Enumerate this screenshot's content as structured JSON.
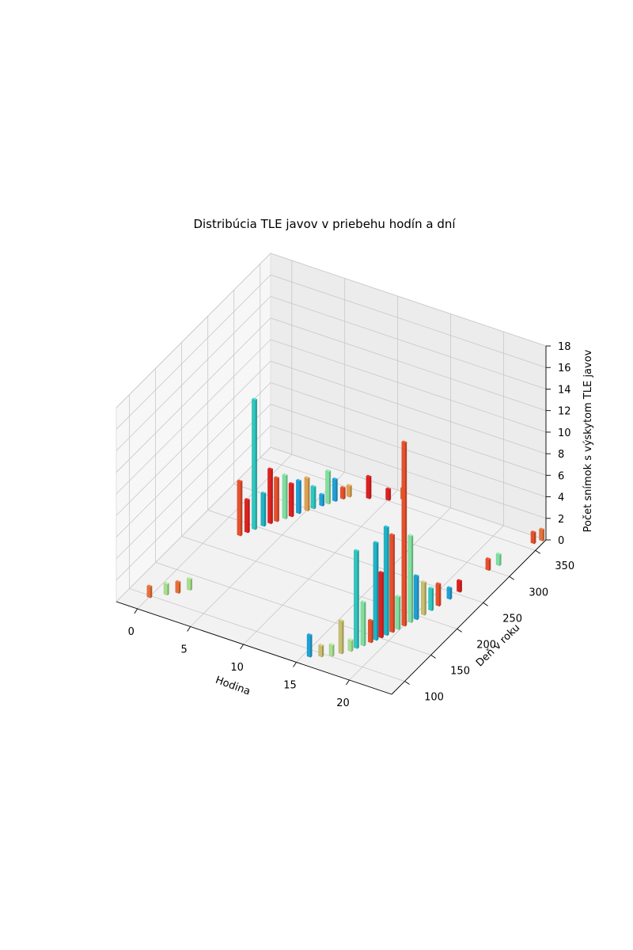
{
  "chart_data": {
    "type": "bar3d",
    "title": "Distribúcia TLE javov v priebehu hodín a dní",
    "xlabel": "Hodina",
    "ylabel": "Deň v roku",
    "zlabel": "Počet snímok s výskytom TLE javov",
    "xlim": [
      -2,
      24
    ],
    "ylim": [
      75,
      370
    ],
    "zlim": [
      0,
      18
    ],
    "xticks": [
      0,
      5,
      10,
      15,
      20
    ],
    "yticks": [
      100,
      150,
      200,
      250,
      300,
      350
    ],
    "zticks": [
      0,
      2,
      4,
      6,
      8,
      10,
      12,
      14,
      16,
      18
    ],
    "grid": true,
    "bars": [
      {
        "x": 0,
        "y": 98,
        "z": 1,
        "color": "#e8703a"
      },
      {
        "x": 1,
        "y": 110,
        "z": 1,
        "color": "#a8e08e"
      },
      {
        "x": 1.7,
        "y": 118,
        "z": 1,
        "color": "#e8703a"
      },
      {
        "x": 2.3,
        "y": 128,
        "z": 1,
        "color": "#a8e08e"
      },
      {
        "x": 2,
        "y": 230,
        "z": 5,
        "color": "#e8502c"
      },
      {
        "x": 2.3,
        "y": 238,
        "z": 3,
        "color": "#e02020"
      },
      {
        "x": 2.6,
        "y": 246,
        "z": 12,
        "color": "#2ec8c0"
      },
      {
        "x": 3,
        "y": 255,
        "z": 3,
        "color": "#1fb4c8"
      },
      {
        "x": 3.3,
        "y": 262,
        "z": 5,
        "color": "#e02020"
      },
      {
        "x": 3.6,
        "y": 268,
        "z": 4,
        "color": "#e8502c"
      },
      {
        "x": 4,
        "y": 276,
        "z": 4,
        "color": "#7fe0a0"
      },
      {
        "x": 4.3,
        "y": 282,
        "z": 3,
        "color": "#e02020"
      },
      {
        "x": 4.6,
        "y": 290,
        "z": 3,
        "color": "#1fa0d8"
      },
      {
        "x": 5,
        "y": 298,
        "z": 3,
        "color": "#e0a050"
      },
      {
        "x": 5.3,
        "y": 304,
        "z": 2,
        "color": "#2ec8c0"
      },
      {
        "x": 5.7,
        "y": 312,
        "z": 1,
        "color": "#1fa0d8"
      },
      {
        "x": 6,
        "y": 318,
        "z": 3,
        "color": "#7fe0a0"
      },
      {
        "x": 6.3,
        "y": 325,
        "z": 2,
        "color": "#1fa0d8"
      },
      {
        "x": 6.7,
        "y": 332,
        "z": 1,
        "color": "#e8502c"
      },
      {
        "x": 7,
        "y": 338,
        "z": 1,
        "color": "#e0a050"
      },
      {
        "x": 8.5,
        "y": 345,
        "z": 2,
        "color": "#e02020"
      },
      {
        "x": 10,
        "y": 352,
        "z": 1,
        "color": "#e02020"
      },
      {
        "x": 11,
        "y": 360,
        "z": 1,
        "color": "#e8703a"
      },
      {
        "x": 15.5,
        "y": 90,
        "z": 2,
        "color": "#1fa0d8"
      },
      {
        "x": 16.3,
        "y": 96,
        "z": 1,
        "color": "#c8c070"
      },
      {
        "x": 17,
        "y": 102,
        "z": 1,
        "color": "#a8e08e"
      },
      {
        "x": 17.5,
        "y": 110,
        "z": 3,
        "color": "#c8c070"
      },
      {
        "x": 18,
        "y": 118,
        "z": 1,
        "color": "#a8e08e"
      },
      {
        "x": 18.2,
        "y": 125,
        "z": 9,
        "color": "#2ec8c0"
      },
      {
        "x": 18.5,
        "y": 132,
        "z": 4,
        "color": "#7fe0a0"
      },
      {
        "x": 18.8,
        "y": 140,
        "z": 2,
        "color": "#e8502c"
      },
      {
        "x": 19,
        "y": 146,
        "z": 9,
        "color": "#1fb4c8"
      },
      {
        "x": 19.2,
        "y": 152,
        "z": 6,
        "color": "#e02020"
      },
      {
        "x": 19.4,
        "y": 158,
        "z": 10,
        "color": "#1fb4c8"
      },
      {
        "x": 19.6,
        "y": 165,
        "z": 9,
        "color": "#e8502c"
      },
      {
        "x": 19.8,
        "y": 172,
        "z": 3,
        "color": "#7fe0a0"
      },
      {
        "x": 20,
        "y": 180,
        "z": 17,
        "color": "#e8502c"
      },
      {
        "x": 20.2,
        "y": 188,
        "z": 8,
        "color": "#7fe0a0"
      },
      {
        "x": 20.4,
        "y": 195,
        "z": 4,
        "color": "#1fa0d8"
      },
      {
        "x": 20.6,
        "y": 205,
        "z": 3,
        "color": "#c8c070"
      },
      {
        "x": 20.8,
        "y": 215,
        "z": 2,
        "color": "#2ec8c0"
      },
      {
        "x": 21,
        "y": 225,
        "z": 2,
        "color": "#e8502c"
      },
      {
        "x": 21.3,
        "y": 240,
        "z": 1,
        "color": "#1fa0d8"
      },
      {
        "x": 21.5,
        "y": 255,
        "z": 1,
        "color": "#e02020"
      },
      {
        "x": 22,
        "y": 300,
        "z": 1,
        "color": "#e8502c"
      },
      {
        "x": 22.4,
        "y": 312,
        "z": 1,
        "color": "#7fe0a0"
      },
      {
        "x": 23.3,
        "y": 360,
        "z": 1,
        "color": "#e8502c"
      },
      {
        "x": 23.7,
        "y": 368,
        "z": 1,
        "color": "#e8703a"
      }
    ]
  }
}
